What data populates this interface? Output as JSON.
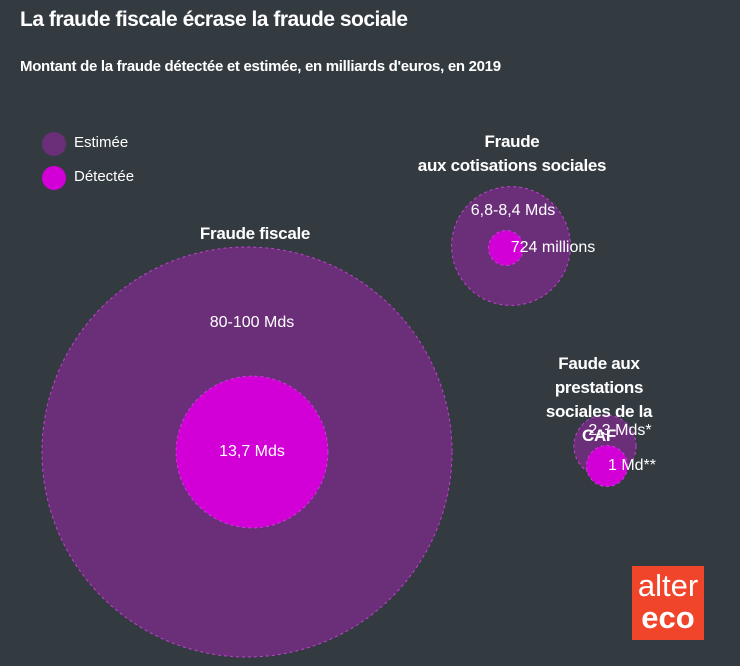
{
  "chart_data": {
    "type": "bubble",
    "title": "La fraude fiscale écrase la fraude sociale",
    "subtitle": "Montant de la fraude détectée et estimée, en milliards d'euros, en 2019",
    "categories": [
      "Fraude fiscale",
      "Fraude\naux cotisations sociales",
      "Faude aux prestations\nsociales de la CAF"
    ],
    "series": [
      {
        "name": "Estimée",
        "color": "#6b2f7a",
        "values": [
          100,
          8.4,
          2.3
        ],
        "value_labels": [
          "80-100 Mds",
          "6,8-8,4 Mds",
          "2,3 Mds*"
        ]
      },
      {
        "name": "Détectée",
        "color": "#d200d6",
        "values": [
          13.7,
          0.724,
          1
        ],
        "value_labels": [
          "13,7 Mds",
          "724 millions",
          "1 Md**"
        ]
      }
    ],
    "logo": [
      "alter",
      "eco"
    ]
  }
}
